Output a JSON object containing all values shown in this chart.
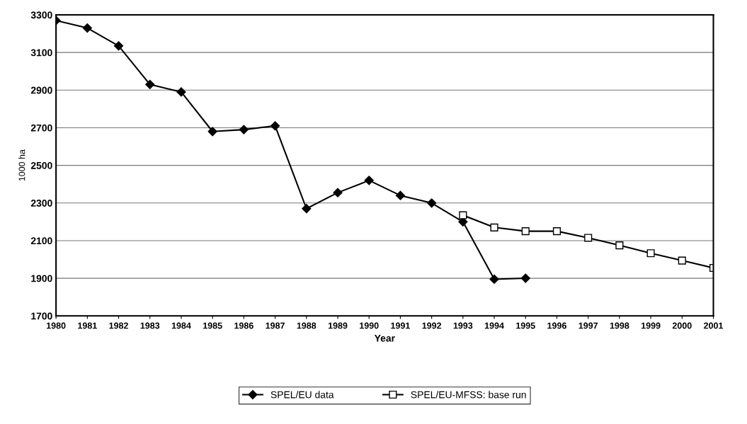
{
  "chart_data": {
    "type": "line",
    "xlabel": "Year",
    "ylabel": "1000 ha",
    "categories": [
      "1980",
      "1981",
      "1982",
      "1983",
      "1984",
      "1985",
      "1986",
      "1987",
      "1988",
      "1989",
      "1990",
      "1991",
      "1992",
      "1993",
      "1994",
      "1995",
      "1996",
      "1997",
      "1998",
      "1999",
      "2000",
      "2001"
    ],
    "series": [
      {
        "name": "SPEL/EU data",
        "color": "#000000",
        "marker": "diamond",
        "values": [
          3270,
          3230,
          3135,
          2930,
          2890,
          2680,
          2690,
          2710,
          2270,
          2355,
          2420,
          2340,
          2300,
          2200,
          1895,
          1900,
          null,
          null,
          null,
          null,
          null,
          null
        ]
      },
      {
        "name": "SPEL/EU-MFSS: base run",
        "color": "#000000",
        "marker": "square",
        "values": [
          null,
          null,
          null,
          null,
          null,
          null,
          null,
          null,
          null,
          null,
          null,
          null,
          null,
          2235,
          2170,
          2150,
          2150,
          2115,
          2075,
          2033,
          1994,
          1955
        ]
      }
    ],
    "ylim": [
      1700,
      3300
    ],
    "yticks": [
      1700,
      1900,
      2100,
      2300,
      2500,
      2700,
      2900,
      3100,
      3300
    ],
    "grid": "y",
    "legend": "bottom",
    "line_style": "solid"
  }
}
